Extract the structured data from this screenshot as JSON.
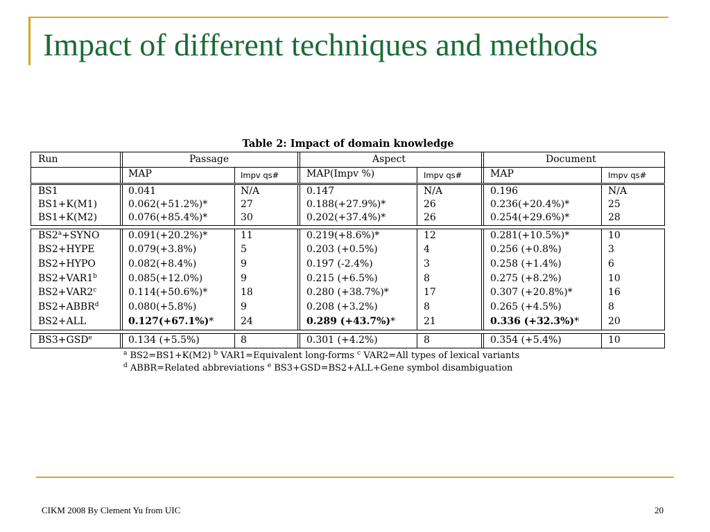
{
  "slide": {
    "title": "Impact of different techniques and methods",
    "footer_left": "CIKM 2008 By Clement Yu from UIC",
    "page_number": "20"
  },
  "table": {
    "caption": "Table 2: Impact of domain knowledge",
    "headers": {
      "run": "Run",
      "passage": "Passage",
      "aspect": "Aspect",
      "document": "Document",
      "passage_map": "MAP",
      "passage_impv": "Impv qs#",
      "aspect_map": "MAP(Impv %)",
      "aspect_impv": "Impv qs#",
      "document_map": "MAP",
      "document_impv": "Impv qs#"
    },
    "groups": [
      {
        "rows": [
          {
            "run": "BS1",
            "sup": "",
            "p_map": "0.041",
            "p_q": "N/A",
            "a_map": "0.147",
            "a_q": "N/A",
            "d_map": "0.196",
            "d_q": "N/A"
          },
          {
            "run": "BS1+K(M1)",
            "sup": "",
            "p_map": "0.062(+51.2%)*",
            "p_q": "27",
            "a_map": "0.188(+27.9%)*",
            "a_q": "26",
            "d_map": "0.236(+20.4%)*",
            "d_q": "25"
          },
          {
            "run": "BS1+K(M2)",
            "sup": "",
            "p_map": "0.076(+85.4%)*",
            "p_q": "30",
            "a_map": "0.202(+37.4%)*",
            "a_q": "26",
            "d_map": "0.254(+29.6%)*",
            "d_q": "28"
          }
        ]
      },
      {
        "rows": [
          {
            "run": "BS2",
            "sup": "a",
            "run_tail": "+SYNO",
            "p_map": "0.091(+20.2%)*",
            "p_q": "11",
            "a_map": "0.219(+8.6%)*",
            "a_q": "12",
            "d_map": "0.281(+10.5%)*",
            "d_q": "10"
          },
          {
            "run": "BS2+HYPE",
            "sup": "",
            "p_map": "0.079(+3.8%)",
            "p_q": "5",
            "a_map": "0.203 (+0.5%)",
            "a_q": "4",
            "d_map": "0.256 (+0.8%)",
            "d_q": "3"
          },
          {
            "run": "BS2+HYPO",
            "sup": "",
            "p_map": "0.082(+8.4%)",
            "p_q": "9",
            "a_map": "0.197 (-2.4%)",
            "a_q": "3",
            "d_map": "0.258 (+1.4%)",
            "d_q": "6"
          },
          {
            "run": "BS2+VAR1",
            "sup": "b",
            "p_map": "0.085(+12.0%)",
            "p_q": "9",
            "a_map": "0.215 (+6.5%)",
            "a_q": "8",
            "d_map": "0.275 (+8.2%)",
            "d_q": "10"
          },
          {
            "run": "BS2+VAR2",
            "sup": "c",
            "p_map": "0.114(+50.6%)*",
            "p_q": "18",
            "a_map": "0.280 (+38.7%)*",
            "a_q": "17",
            "d_map": "0.307 (+20.8%)*",
            "d_q": "16"
          },
          {
            "run": "BS2+ABBR",
            "sup": "d",
            "p_map": "0.080(+5.8%)",
            "p_q": "9",
            "a_map": "0.208 (+3.2%)",
            "a_q": "8",
            "d_map": "0.265 (+4.5%)",
            "d_q": "8"
          },
          {
            "run": "BS2+ALL",
            "sup": "",
            "bold": true,
            "p_map": "0.127(+67.1%)",
            "p_q": "24",
            "a_map": "0.289 (+43.7%)",
            "a_q": "21",
            "d_map": "0.336 (+32.3%)",
            "d_q": "20"
          }
        ]
      },
      {
        "rows": [
          {
            "run": "BS3+GSD",
            "sup": "e",
            "p_map": "0.134 (+5.5%)",
            "p_q": "8",
            "a_map": "0.301 (+4.2%)",
            "a_q": "8",
            "d_map": "0.354 (+5.4%)",
            "d_q": "10"
          }
        ]
      }
    ],
    "footnotes": {
      "line1_a": "a",
      "line1_a_text": " BS2=BS1+K(M2) ",
      "line1_b": "b",
      "line1_b_text": " VAR1=Equivalent long-forms ",
      "line1_c": "c",
      "line1_c_text": " VAR2=All types of lexical variants",
      "line2_d": "d",
      "line2_d_text": " ABBR=Related abbreviations ",
      "line2_e": "e",
      "line2_e_text": " BS3+GSD=BS2+ALL+Gene symbol disambiguation"
    }
  }
}
